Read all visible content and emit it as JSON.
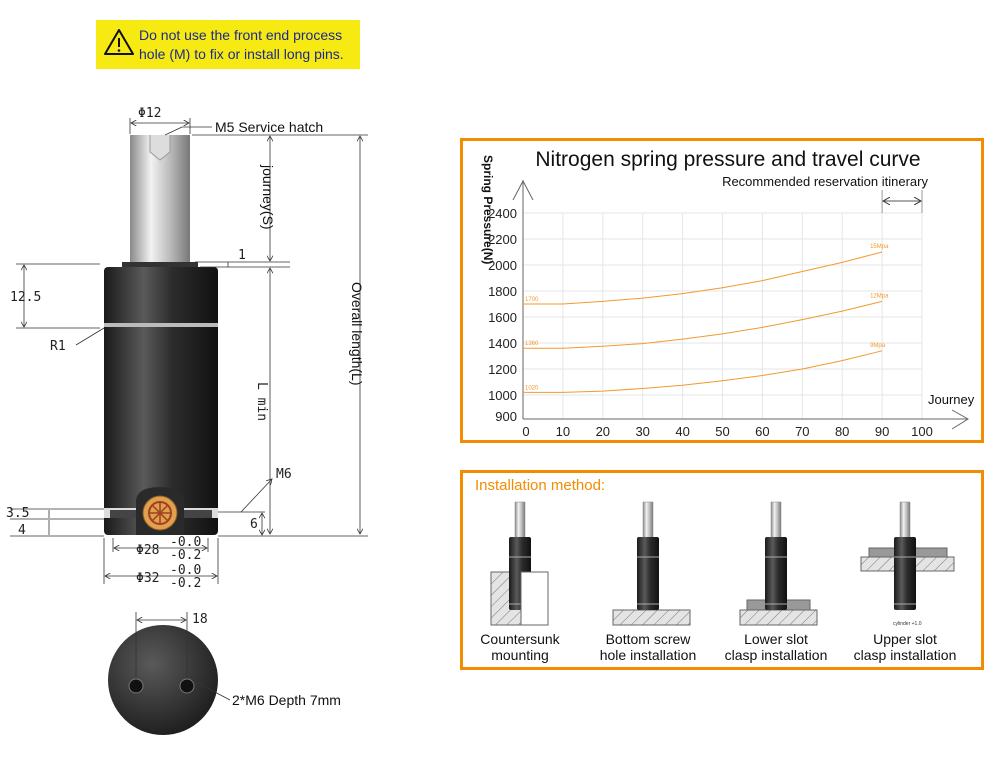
{
  "warning": {
    "icon": "warning-triangle-icon",
    "line1": "Do not use the front end process",
    "line2": "hole (M) to fix or install long pins.",
    "bg_color": "#f7ea12",
    "text_color": "#1b2a8c"
  },
  "drawing": {
    "rod_dia": "Φ12",
    "service_hatch": "M5 Service hatch",
    "journey": "journey(S)",
    "overall_length": "Overall length(L)",
    "dim_1": "1",
    "dim_12_5": "12.5",
    "r1": "R1",
    "lmin": "L min",
    "m6": "M6",
    "dim_3_5": "3.5",
    "dim_4": "4",
    "dim_6": "6",
    "dia28": "Φ28",
    "dia32": "Φ32",
    "tol_upper": "-0.0",
    "tol_lower": "-0.2",
    "dim_18": "18",
    "bottom_holes": "2*M6  Depth 7mm"
  },
  "chart_data": {
    "type": "line",
    "title": "Nitrogen spring pressure and travel curve",
    "annotation": "Recommended reservation itinerary",
    "annotation_range": [
      90,
      100
    ],
    "xlabel": "Journey",
    "ylabel": "Spring Pressure(N)",
    "xlim": [
      0,
      100
    ],
    "ylim": [
      900,
      2400
    ],
    "x_ticks": [
      "0",
      "10",
      "20",
      "30",
      "40",
      "50",
      "60",
      "70",
      "80",
      "90",
      "100"
    ],
    "y_ticks": [
      "2400",
      "2200",
      "2000",
      "1800",
      "1600",
      "1400",
      "1200",
      "1000",
      "900"
    ],
    "grid": true,
    "line_color": "#f29a2e",
    "x": [
      0,
      10,
      20,
      30,
      40,
      50,
      60,
      70,
      80,
      90
    ],
    "series": [
      {
        "name": "15Mpa",
        "start_label": "1700",
        "values": [
          1700,
          1700,
          1720,
          1745,
          1780,
          1825,
          1880,
          1950,
          2020,
          2100
        ]
      },
      {
        "name": "12Mpa",
        "start_label": "1360",
        "values": [
          1360,
          1360,
          1375,
          1395,
          1430,
          1470,
          1520,
          1580,
          1645,
          1720
        ]
      },
      {
        "name": "9Mpa",
        "start_label": "1020",
        "values": [
          1020,
          1020,
          1030,
          1050,
          1075,
          1110,
          1150,
          1200,
          1265,
          1340
        ]
      }
    ]
  },
  "installation": {
    "title": "Installation method:",
    "accent": "#f28c00",
    "cylinder_note": "cylinder +1.0",
    "methods": [
      {
        "line1": "Countersunk",
        "line2": "mounting"
      },
      {
        "line1": "Bottom screw",
        "line2": "hole installation"
      },
      {
        "line1": "Lower slot",
        "line2": "clasp installation"
      },
      {
        "line1": "Upper slot",
        "line2": "clasp installation"
      }
    ]
  }
}
